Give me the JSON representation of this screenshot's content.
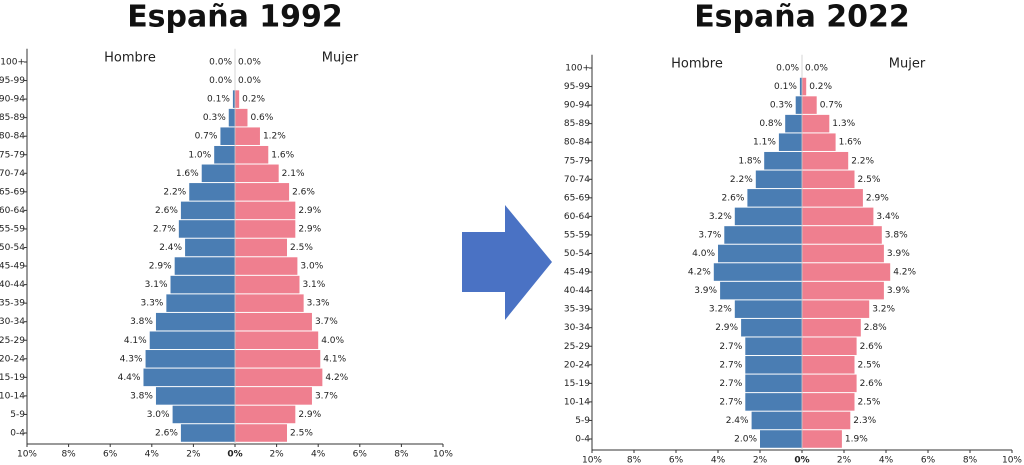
{
  "chart_data": [
    {
      "type": "pyramid",
      "title": "España 1992",
      "categories": [
        "0-4",
        "5-9",
        "10-14",
        "15-19",
        "20-24",
        "25-29",
        "30-34",
        "35-39",
        "40-44",
        "45-49",
        "50-54",
        "55-59",
        "60-64",
        "65-69",
        "70-74",
        "75-79",
        "80-84",
        "85-89",
        "90-94",
        "95-99",
        "100+"
      ],
      "series": [
        {
          "name": "Hombre",
          "color": "#4a7db3",
          "side": "left",
          "values": [
            2.6,
            3.0,
            3.8,
            4.4,
            4.3,
            4.1,
            3.8,
            3.3,
            3.1,
            2.9,
            2.4,
            2.7,
            2.6,
            2.2,
            1.6,
            1.0,
            0.7,
            0.3,
            0.1,
            0.0,
            0.0
          ],
          "value_labels": [
            "2.6%",
            "3.0%",
            "3.8%",
            "4.4%",
            "4.3%",
            "4.1%",
            "3.8%",
            "3.3%",
            "3.1%",
            "2.9%",
            "2.4%",
            "2.7%",
            "2.6%",
            "2.2%",
            "1.6%",
            "1.0%",
            "0.7%",
            "0.3%",
            "0.1%",
            "0.0%",
            "0.0%"
          ]
        },
        {
          "name": "Mujer",
          "color": "#ef7f8f",
          "side": "right",
          "values": [
            2.5,
            2.9,
            3.7,
            4.2,
            4.1,
            4.0,
            3.7,
            3.3,
            3.1,
            3.0,
            2.5,
            2.9,
            2.9,
            2.6,
            2.1,
            1.6,
            1.2,
            0.6,
            0.2,
            0.0,
            0.0
          ],
          "value_labels": [
            "2.5%",
            "2.9%",
            "3.7%",
            "4.2%",
            "4.1%",
            "4.0%",
            "3.7%",
            "3.3%",
            "3.1%",
            "3.0%",
            "2.5%",
            "2.9%",
            "2.9%",
            "2.6%",
            "2.1%",
            "1.6%",
            "1.2%",
            "0.6%",
            "0.2%",
            "0.0%",
            "0.0%"
          ]
        }
      ],
      "xlim": [
        -10,
        10
      ],
      "xticks": [
        {
          "value": -10,
          "label": "10%"
        },
        {
          "value": -8,
          "label": "8%"
        },
        {
          "value": -6,
          "label": "6%"
        },
        {
          "value": -4,
          "label": "4%"
        },
        {
          "value": -2,
          "label": "2%"
        },
        {
          "value": 0,
          "label": "0%"
        },
        {
          "value": 2,
          "label": "2%"
        },
        {
          "value": 4,
          "label": "4%"
        },
        {
          "value": 6,
          "label": "6%"
        },
        {
          "value": 8,
          "label": "8%"
        },
        {
          "value": 10,
          "label": "10%"
        }
      ]
    },
    {
      "type": "pyramid",
      "title": "España 2022",
      "categories": [
        "0-4",
        "5-9",
        "10-14",
        "15-19",
        "20-24",
        "25-29",
        "30-34",
        "35-39",
        "40-44",
        "45-49",
        "50-54",
        "55-59",
        "60-64",
        "65-69",
        "70-74",
        "75-79",
        "80-84",
        "85-89",
        "90-94",
        "95-99",
        "100+"
      ],
      "series": [
        {
          "name": "Hombre",
          "color": "#4a7db3",
          "side": "left",
          "values": [
            2.0,
            2.4,
            2.7,
            2.7,
            2.7,
            2.7,
            2.9,
            3.2,
            3.9,
            4.2,
            4.0,
            3.7,
            3.2,
            2.6,
            2.2,
            1.8,
            1.1,
            0.8,
            0.3,
            0.1,
            0.0
          ],
          "value_labels": [
            "2.0%",
            "2.4%",
            "2.7%",
            "2.7%",
            "2.7%",
            "2.7%",
            "2.9%",
            "3.2%",
            "3.9%",
            "4.2%",
            "4.0%",
            "3.7%",
            "3.2%",
            "2.6%",
            "2.2%",
            "1.8%",
            "1.1%",
            "0.8%",
            "0.3%",
            "0.1%",
            "0.0%"
          ]
        },
        {
          "name": "Mujer",
          "color": "#ef7f8f",
          "side": "right",
          "values": [
            1.9,
            2.3,
            2.5,
            2.6,
            2.5,
            2.6,
            2.8,
            3.2,
            3.9,
            4.2,
            3.9,
            3.8,
            3.4,
            2.9,
            2.5,
            2.2,
            1.6,
            1.3,
            0.7,
            0.2,
            0.0
          ],
          "value_labels": [
            "1.9%",
            "2.3%",
            "2.5%",
            "2.6%",
            "2.5%",
            "2.6%",
            "2.8%",
            "3.2%",
            "3.9%",
            "4.2%",
            "3.9%",
            "3.8%",
            "3.4%",
            "2.9%",
            "2.5%",
            "2.2%",
            "1.6%",
            "1.3%",
            "0.7%",
            "0.2%",
            "0.0%"
          ]
        }
      ],
      "xlim": [
        -10,
        10
      ],
      "xticks": [
        {
          "value": -10,
          "label": "10%"
        },
        {
          "value": -8,
          "label": "8%"
        },
        {
          "value": -6,
          "label": "6%"
        },
        {
          "value": -4,
          "label": "4%"
        },
        {
          "value": -2,
          "label": "2%"
        },
        {
          "value": 0,
          "label": "0%"
        },
        {
          "value": 2,
          "label": "2%"
        },
        {
          "value": 4,
          "label": "4%"
        },
        {
          "value": 6,
          "label": "6%"
        },
        {
          "value": 8,
          "label": "8%"
        },
        {
          "value": 10,
          "label": "10%"
        }
      ]
    }
  ]
}
